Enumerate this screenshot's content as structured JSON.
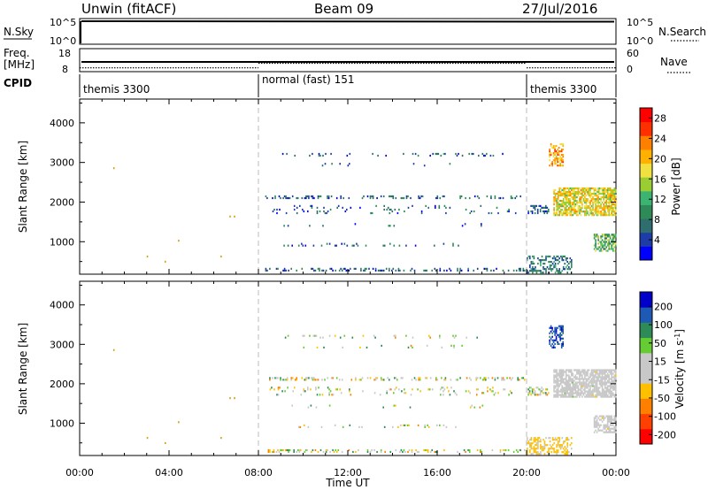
{
  "header": {
    "station": "Unwin (fitACF)",
    "beam": "Beam 09",
    "date": "27/Jul/2016"
  },
  "nsky_panel": {
    "left_label": "N.Sky",
    "right_label": "N.Search",
    "left_ticks": [
      "10^5",
      "10^0"
    ],
    "right_ticks": [
      "10^5",
      "10^0"
    ]
  },
  "freq_panel": {
    "left_label": "Freq.",
    "left_unit": "[MHz]",
    "right_label": "Nave",
    "left_ticks": [
      "18",
      "8"
    ],
    "right_ticks": [
      "60",
      "0"
    ],
    "freq_value_mhz": 11.0,
    "nave_segments": [
      {
        "start_h": 0,
        "end_h": 8,
        "nave": 10
      },
      {
        "start_h": 8,
        "end_h": 20,
        "nave": 22
      },
      {
        "start_h": 20,
        "end_h": 24,
        "nave": 10
      }
    ]
  },
  "cpid_panel": {
    "label": "CPID",
    "segments": [
      {
        "start_h": 0,
        "end_h": 8,
        "name": "themis 3300"
      },
      {
        "start_h": 8,
        "end_h": 20,
        "name": "normal (fast) 151"
      },
      {
        "start_h": 20,
        "end_h": 24,
        "name": "themis 3300"
      }
    ]
  },
  "chart_data": [
    {
      "type": "heatmap",
      "name": "power",
      "ylabel": "Slant Range [km]",
      "yticks": [
        1000,
        2000,
        3000,
        4000
      ],
      "ylim": [
        180,
        4600
      ],
      "xlim": [
        0,
        24
      ],
      "colorbar": {
        "label": "Power [dB]",
        "tick_labels": [
          "4",
          "8",
          "12",
          "16",
          "20",
          "24",
          "28"
        ],
        "range": [
          0,
          30
        ],
        "colors": [
          "#0000ff",
          "#1e3ca8",
          "#2e6e6e",
          "#2e8b57",
          "#3cb371",
          "#9acd32",
          "#f0e040",
          "#ffb000",
          "#ff7f00",
          "#ff3000",
          "#ff0000"
        ]
      },
      "regions": [
        {
          "t0": 20.05,
          "t1": 21.0,
          "r0": 1700,
          "r1": 1900,
          "value": 6,
          "density": 0.45
        },
        {
          "t0": 21.2,
          "t1": 24.0,
          "r0": 1650,
          "r1": 2350,
          "value": 18,
          "density": 0.75
        },
        {
          "t0": 21.0,
          "t1": 21.6,
          "r0": 2900,
          "r1": 3450,
          "value": 21,
          "density": 0.5
        },
        {
          "t0": 23.0,
          "t1": 24.0,
          "r0": 750,
          "r1": 1200,
          "value": 12,
          "density": 0.6
        },
        {
          "t0": 8.3,
          "t1": 19.9,
          "r0": 2080,
          "r1": 2160,
          "value": 6,
          "density": 0.3
        },
        {
          "t0": 8.3,
          "t1": 19.9,
          "r0": 250,
          "r1": 330,
          "value": 6,
          "density": 0.25
        },
        {
          "t0": 20.0,
          "t1": 22.0,
          "r0": 200,
          "r1": 650,
          "value": 8,
          "density": 0.4
        },
        {
          "t0": 9.0,
          "t1": 19.0,
          "r0": 3150,
          "r1": 3220,
          "value": 6,
          "density": 0.1
        },
        {
          "t0": 10.0,
          "t1": 18.0,
          "r0": 2900,
          "r1": 2970,
          "value": 6,
          "density": 0.06
        },
        {
          "t0": 9.0,
          "t1": 17.0,
          "r0": 880,
          "r1": 950,
          "value": 6,
          "density": 0.08
        },
        {
          "t0": 9.0,
          "t1": 19.0,
          "r0": 1380,
          "r1": 1450,
          "value": 6,
          "density": 0.05
        },
        {
          "t0": 8.5,
          "t1": 19.5,
          "r0": 1700,
          "r1": 1900,
          "value": 6,
          "density": 0.08
        }
      ]
    },
    {
      "type": "heatmap",
      "name": "velocity",
      "ylabel": "Slant Range [km]",
      "yticks": [
        1000,
        2000,
        3000,
        4000
      ],
      "ylim": [
        180,
        4600
      ],
      "xlim": [
        0,
        24
      ],
      "xticks": [
        "00:00",
        "04:00",
        "08:00",
        "12:00",
        "16:00",
        "20:00",
        "00:00"
      ],
      "xlabel": "Time UT",
      "colorbar": {
        "label": "Velocity [m s^-1]",
        "tick_labels": [
          "200",
          "100",
          "50",
          "15",
          "-15",
          "-50",
          "-100",
          "-200"
        ],
        "range": [
          -250,
          250
        ],
        "colors": [
          "#ff0000",
          "#ff4000",
          "#ff8000",
          "#ffc000",
          "#c8c8c8",
          "#c8c8c8",
          "#66cc33",
          "#2e8b57",
          "#1e5ab4",
          "#0000c8"
        ]
      },
      "regions": [
        {
          "t0": 21.2,
          "t1": 24.0,
          "r0": 1650,
          "r1": 2350,
          "value": 0,
          "density": 0.8
        },
        {
          "t0": 23.0,
          "t1": 24.0,
          "r0": 750,
          "r1": 1200,
          "value": 0,
          "density": 0.6
        },
        {
          "t0": 21.0,
          "t1": 21.6,
          "r0": 2900,
          "r1": 3450,
          "value": 180,
          "density": 0.5
        },
        {
          "t0": 20.05,
          "t1": 21.0,
          "r0": 1700,
          "r1": 1900,
          "value": -30,
          "density": 0.45
        },
        {
          "t0": 8.3,
          "t1": 19.9,
          "r0": 2080,
          "r1": 2160,
          "value": 40,
          "density": 0.3
        },
        {
          "t0": 8.3,
          "t1": 19.9,
          "r0": 250,
          "r1": 330,
          "value": -40,
          "density": 0.25
        },
        {
          "t0": 20.0,
          "t1": 22.0,
          "r0": 200,
          "r1": 650,
          "value": -60,
          "density": 0.4
        },
        {
          "t0": 9.0,
          "t1": 19.0,
          "r0": 3150,
          "r1": 3220,
          "value": 20,
          "density": 0.1
        },
        {
          "t0": 10.0,
          "t1": 18.0,
          "r0": 2900,
          "r1": 2970,
          "value": -20,
          "density": 0.06
        },
        {
          "t0": 9.0,
          "t1": 17.0,
          "r0": 880,
          "r1": 950,
          "value": 10,
          "density": 0.08
        },
        {
          "t0": 9.0,
          "t1": 19.0,
          "r0": 1380,
          "r1": 1450,
          "value": -10,
          "density": 0.05
        },
        {
          "t0": 8.5,
          "t1": 19.5,
          "r0": 1700,
          "r1": 1900,
          "value": 30,
          "density": 0.08
        }
      ]
    }
  ],
  "isolated_points": [
    {
      "t": 1.5,
      "r": 2880
    },
    {
      "t": 3.0,
      "r": 650
    },
    {
      "t": 4.4,
      "r": 1050
    },
    {
      "t": 3.8,
      "r": 520
    },
    {
      "t": 6.7,
      "r": 1660
    },
    {
      "t": 6.9,
      "r": 1660
    },
    {
      "t": 6.3,
      "r": 650
    }
  ]
}
